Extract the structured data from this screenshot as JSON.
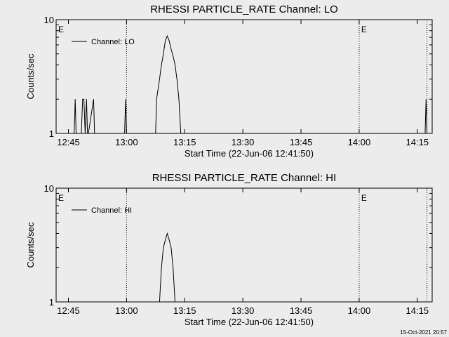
{
  "footer": {
    "timestamp": "15-Oct-2021 20:57"
  },
  "chart_data": [
    {
      "type": "line",
      "title": "RHESSI PARTICLE_RATE Channel: LO",
      "xlabel": "Start Time (22-Jun-06 12:41:50)",
      "ylabel": "Counts/sec",
      "yscale": "log",
      "ylim": [
        1,
        10
      ],
      "xlim_minutes": [
        0,
        97
      ],
      "xticks": [
        "12:45",
        "13:00",
        "13:15",
        "13:30",
        "13:45",
        "14:00",
        "14:15"
      ],
      "yticks": [
        "1",
        "10"
      ],
      "legend": {
        "label": "Channel: LO",
        "position": "top-left"
      },
      "event_markers": [
        {
          "label": "E",
          "time": "12:41:50"
        },
        {
          "label": "",
          "time": "13:00"
        },
        {
          "label": "E",
          "time": "14:00"
        },
        {
          "label": "",
          "time": "14:17:30"
        }
      ],
      "series": [
        {
          "name": "Channel: LO",
          "x": [
            "12:46:30",
            "12:46:45",
            "12:47:00",
            "12:48:20",
            "12:48:40",
            "12:49:00",
            "12:49:20",
            "12:49:40",
            "12:49:55",
            "12:50:10",
            "12:51:30",
            "12:51:45",
            "12:52:00",
            "12:59:30",
            "12:59:45",
            "13:00:00",
            "13:00:15",
            "13:07:30",
            "13:07:45",
            "13:08:30",
            "13:09:00",
            "13:09:30",
            "13:10:00",
            "13:10:30",
            "13:11:00",
            "13:11:30",
            "13:12:00",
            "13:12:30",
            "13:13:00",
            "13:13:30",
            "13:14:00",
            "14:17:00",
            "14:17:15",
            "14:17:30"
          ],
          "y": [
            1,
            2,
            1,
            1,
            2,
            2,
            1,
            2,
            1,
            1,
            2,
            1,
            1,
            1,
            2,
            1,
            1,
            1,
            2,
            3,
            4,
            5,
            6.5,
            7.2,
            6.5,
            5.5,
            4.8,
            4,
            3,
            2,
            1,
            1,
            2,
            1
          ]
        }
      ]
    },
    {
      "type": "line",
      "title": "RHESSI PARTICLE_RATE Channel: HI",
      "xlabel": "Start Time (22-Jun-06 12:41:50)",
      "ylabel": "Counts/sec",
      "yscale": "log",
      "ylim": [
        1,
        10
      ],
      "xlim_minutes": [
        0,
        97
      ],
      "xticks": [
        "12:45",
        "13:00",
        "13:15",
        "13:30",
        "13:45",
        "14:00",
        "14:15"
      ],
      "yticks": [
        "1",
        "10"
      ],
      "legend": {
        "label": "Channel: HI",
        "position": "top-left"
      },
      "event_markers": [
        {
          "label": "E",
          "time": "12:41:50"
        },
        {
          "label": "",
          "time": "13:00"
        },
        {
          "label": "E",
          "time": "14:00"
        },
        {
          "label": "",
          "time": "14:17:30"
        }
      ],
      "series": [
        {
          "name": "Channel: HI",
          "x": [
            "13:08:30",
            "13:09:00",
            "13:09:30",
            "13:10:00",
            "13:10:30",
            "13:11:00",
            "13:11:30",
            "13:12:00",
            "13:12:30"
          ],
          "y": [
            1,
            2,
            3,
            3.5,
            4,
            3.5,
            3,
            2,
            1
          ]
        }
      ]
    }
  ]
}
